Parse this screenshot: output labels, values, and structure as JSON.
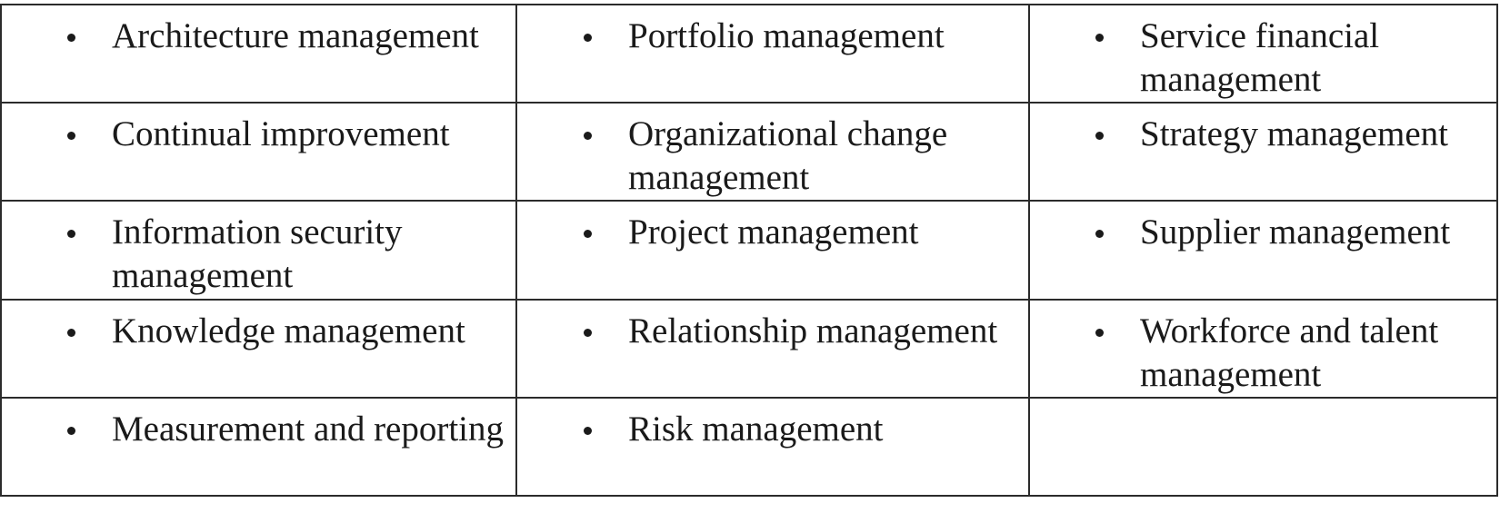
{
  "table": {
    "rows": [
      {
        "cells": [
          {
            "text": "Architecture management"
          },
          {
            "text": "Portfolio management"
          },
          {
            "text": "Service financial management"
          }
        ]
      },
      {
        "cells": [
          {
            "text": "Continual improvement"
          },
          {
            "text": "Organizational change management"
          },
          {
            "text": "Strategy management"
          }
        ]
      },
      {
        "cells": [
          {
            "text": "Information security management"
          },
          {
            "text": "Project management"
          },
          {
            "text": "Supplier management"
          }
        ]
      },
      {
        "cells": [
          {
            "text": "Knowledge management"
          },
          {
            "text": "Relationship management"
          },
          {
            "text": "Workforce and talent management"
          }
        ]
      },
      {
        "cells": [
          {
            "text": "Measurement and reporting"
          },
          {
            "text": "Risk management"
          },
          {
            "text": ""
          }
        ]
      }
    ]
  }
}
